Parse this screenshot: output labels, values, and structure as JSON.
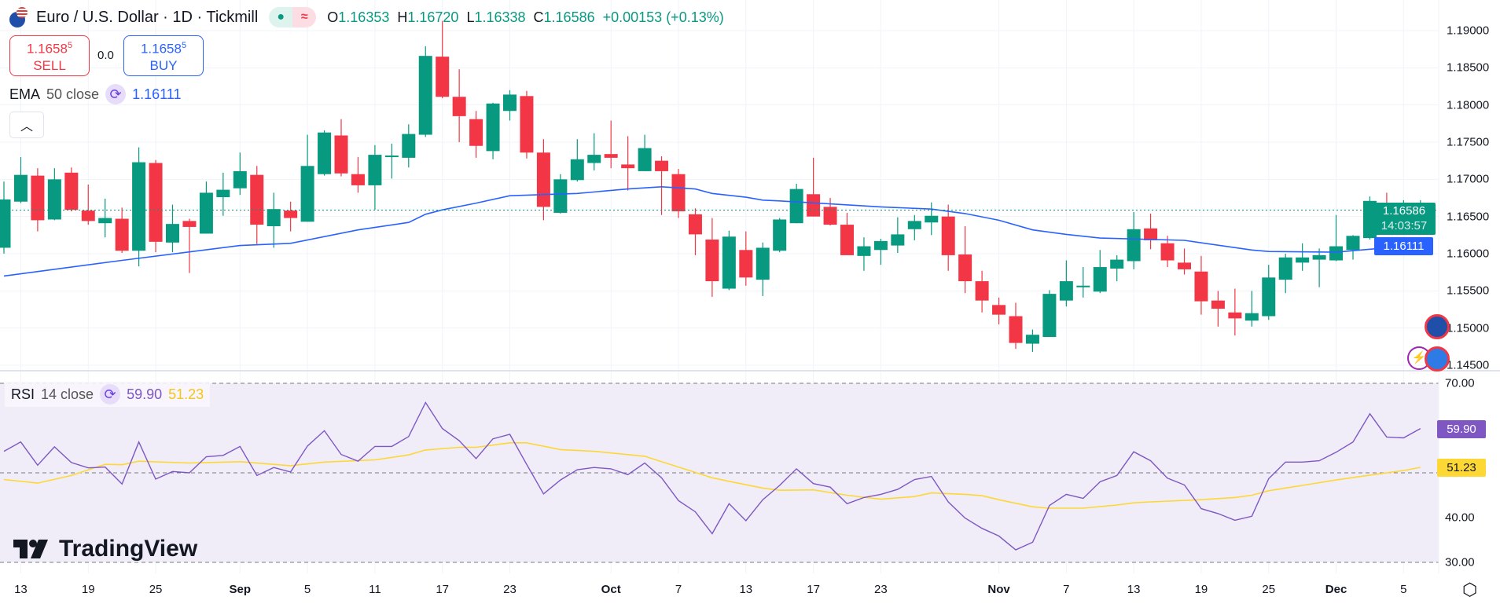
{
  "header": {
    "title": "Euro / U.S. Dollar · 1D · Tickmill",
    "icons": [
      "eu-us-flag-icon",
      "market-open-dot-icon",
      "approx-icon"
    ],
    "ohlc": {
      "o_label": "O",
      "o": "1.16353",
      "h_label": "H",
      "h": "1.16720",
      "l_label": "L",
      "l": "1.16338",
      "c_label": "C",
      "c": "1.16586",
      "change": "+0.00153 (+0.13%)"
    }
  },
  "trade": {
    "sell": {
      "price_main": "1.1658",
      "price_sup": "5",
      "label": "SELL"
    },
    "spread": "0.0",
    "buy": {
      "price_main": "1.1658",
      "price_sup": "5",
      "label": "BUY"
    }
  },
  "ema_legend": {
    "name": "EMA",
    "params": "50 close",
    "value": "1.16111"
  },
  "collapse_icon": "chevron-up-icon",
  "rsi_legend": {
    "name": "RSI",
    "params": "14 close",
    "value": "59.90",
    "ma_value": "51.23"
  },
  "logo": "TradingView",
  "colors": {
    "up": "#089981",
    "down": "#f23645",
    "ema": "#2962ff",
    "rsi": "#7e57c2",
    "rsi_ma": "#fdd835",
    "rsi_band": "#f0ecf8"
  },
  "price_axis": {
    "ticks": [
      "1.19000",
      "1.18500",
      "1.18000",
      "1.17500",
      "1.17000",
      "1.16500",
      "1.16000",
      "1.15500",
      "1.15000",
      "1.14500"
    ],
    "last_price": "1.16586",
    "countdown": "14:03:57",
    "ema_tag": "1.16111"
  },
  "rsi_axis": {
    "ticks": [
      "70.00",
      "40.00",
      "30.00"
    ],
    "rsi_tag": "59.90",
    "ma_tag": "51.23"
  },
  "time_axis": [
    {
      "label": "13",
      "date": "Aug 13"
    },
    {
      "label": "19",
      "date": "Aug 19"
    },
    {
      "label": "25",
      "date": "Aug 25"
    },
    {
      "label": "Sep",
      "date": "Sep 1"
    },
    {
      "label": "5",
      "date": "Sep 5"
    },
    {
      "label": "11",
      "date": "Sep 11"
    },
    {
      "label": "17",
      "date": "Sep 17"
    },
    {
      "label": "23",
      "date": "Sep 23"
    },
    {
      "label": "Oct",
      "date": "Oct 1"
    },
    {
      "label": "7",
      "date": "Oct 7"
    },
    {
      "label": "13",
      "date": "Oct 13"
    },
    {
      "label": "17",
      "date": "Oct 17"
    },
    {
      "label": "23",
      "date": "Oct 23"
    },
    {
      "label": "Nov",
      "date": "Nov 3"
    },
    {
      "label": "7",
      "date": "Nov 7"
    },
    {
      "label": "13",
      "date": "Nov 13"
    },
    {
      "label": "19",
      "date": "Nov 19"
    },
    {
      "label": "25",
      "date": "Nov 25"
    },
    {
      "label": "Dec",
      "date": "Dec 1"
    },
    {
      "label": "5",
      "date": "Dec 5"
    }
  ],
  "chart_data": {
    "type": "candlestick",
    "ylim": [
      1.1445,
      1.1925
    ],
    "columns": [
      "date",
      "open",
      "high",
      "low",
      "close"
    ],
    "candles": [
      [
        "Aug 12",
        1.1608,
        1.1697,
        1.16,
        1.1673
      ],
      [
        "Aug 13",
        1.167,
        1.173,
        1.1668,
        1.1706
      ],
      [
        "Aug 14",
        1.1705,
        1.1715,
        1.163,
        1.1645
      ],
      [
        "Aug 15",
        1.1646,
        1.1715,
        1.1645,
        1.17
      ],
      [
        "Aug 18",
        1.1709,
        1.1716,
        1.1657,
        1.1659
      ],
      [
        "Aug 19",
        1.1658,
        1.1693,
        1.1639,
        1.1644
      ],
      [
        "Aug 20",
        1.1641,
        1.1674,
        1.1622,
        1.1648
      ],
      [
        "Aug 21",
        1.1647,
        1.1662,
        1.1601,
        1.1604
      ],
      [
        "Aug 22",
        1.1604,
        1.1743,
        1.1583,
        1.1723
      ],
      [
        "Aug 25",
        1.1722,
        1.1726,
        1.1602,
        1.1616
      ],
      [
        "Aug 26",
        1.1615,
        1.1666,
        1.1602,
        1.164
      ],
      [
        "Aug 27",
        1.1644,
        1.1647,
        1.1574,
        1.1636
      ],
      [
        "Aug 28",
        1.1627,
        1.1697,
        1.1627,
        1.1682
      ],
      [
        "Aug 29",
        1.1676,
        1.1709,
        1.1651,
        1.1686
      ],
      [
        "Sep 1",
        1.1688,
        1.1736,
        1.1679,
        1.1711
      ],
      [
        "Sep 2",
        1.1706,
        1.1718,
        1.1613,
        1.1639
      ],
      [
        "Sep 3",
        1.1637,
        1.1682,
        1.1608,
        1.166
      ],
      [
        "Sep 4",
        1.1658,
        1.167,
        1.163,
        1.1648
      ],
      [
        "Sep 5",
        1.1643,
        1.176,
        1.1643,
        1.1718
      ],
      [
        "Sep 8",
        1.1707,
        1.1766,
        1.1705,
        1.1763
      ],
      [
        "Sep 9",
        1.1759,
        1.1781,
        1.1704,
        1.1708
      ],
      [
        "Sep 10",
        1.1707,
        1.173,
        1.1682,
        1.1692
      ],
      [
        "Sep 11",
        1.1692,
        1.1746,
        1.1659,
        1.1733
      ],
      [
        "Sep 12",
        1.1731,
        1.1748,
        1.1701,
        1.1732
      ],
      [
        "Sep 15",
        1.1729,
        1.1774,
        1.1716,
        1.1761
      ],
      [
        "Sep 16",
        1.176,
        1.1879,
        1.1757,
        1.1866
      ],
      [
        "Sep 17",
        1.1865,
        1.1913,
        1.1809,
        1.1811
      ],
      [
        "Sep 18",
        1.1811,
        1.1848,
        1.175,
        1.1785
      ],
      [
        "Sep 19",
        1.1781,
        1.1792,
        1.1729,
        1.1745
      ],
      [
        "Sep 22",
        1.1738,
        1.1803,
        1.1727,
        1.1802
      ],
      [
        "Sep 23",
        1.1792,
        1.182,
        1.1779,
        1.1814
      ],
      [
        "Sep 24",
        1.1812,
        1.1819,
        1.1728,
        1.1736
      ],
      [
        "Sep 25",
        1.1736,
        1.1754,
        1.1645,
        1.1663
      ],
      [
        "Sep 26",
        1.1655,
        1.1707,
        1.1654,
        1.17
      ],
      [
        "Sep 29",
        1.1699,
        1.1754,
        1.1697,
        1.1727
      ],
      [
        "Sep 30",
        1.1722,
        1.1762,
        1.1712,
        1.1733
      ],
      [
        "Oct 1",
        1.1734,
        1.1779,
        1.1715,
        1.1729
      ],
      [
        "Oct 2",
        1.172,
        1.1758,
        1.1685,
        1.1715
      ],
      [
        "Oct 3",
        1.1711,
        1.176,
        1.1711,
        1.1742
      ],
      [
        "Oct 6",
        1.1725,
        1.1731,
        1.1652,
        1.1711
      ],
      [
        "Oct 7",
        1.1707,
        1.1714,
        1.1648,
        1.1657
      ],
      [
        "Oct 8",
        1.1653,
        1.1661,
        1.1598,
        1.1626
      ],
      [
        "Oct 9",
        1.1619,
        1.1648,
        1.1542,
        1.1563
      ],
      [
        "Oct 10",
        1.1553,
        1.1631,
        1.1551,
        1.1623
      ],
      [
        "Oct 13",
        1.1605,
        1.163,
        1.1557,
        1.1568
      ],
      [
        "Oct 14",
        1.1565,
        1.1615,
        1.1543,
        1.1608
      ],
      [
        "Oct 15",
        1.1604,
        1.1648,
        1.1602,
        1.1646
      ],
      [
        "Oct 16",
        1.1641,
        1.1694,
        1.1641,
        1.1687
      ],
      [
        "Oct 17",
        1.168,
        1.1729,
        1.165,
        1.165
      ],
      [
        "Oct 20",
        1.1663,
        1.1675,
        1.1638,
        1.1639
      ],
      [
        "Oct 21",
        1.1639,
        1.1655,
        1.1598,
        1.1598
      ],
      [
        "Oct 22",
        1.1597,
        1.1622,
        1.1577,
        1.161
      ],
      [
        "Oct 23",
        1.1605,
        1.162,
        1.1585,
        1.1617
      ],
      [
        "Oct 24",
        1.1611,
        1.1649,
        1.1601,
        1.1626
      ],
      [
        "Oct 27",
        1.1633,
        1.1652,
        1.1618,
        1.1644
      ],
      [
        "Oct 28",
        1.1642,
        1.1669,
        1.1625,
        1.1651
      ],
      [
        "Oct 29",
        1.165,
        1.1666,
        1.1577,
        1.1598
      ],
      [
        "Oct 30",
        1.1599,
        1.1637,
        1.1547,
        1.1563
      ],
      [
        "Oct 31",
        1.1563,
        1.1577,
        1.1521,
        1.1537
      ],
      [
        "Nov 3",
        1.1531,
        1.1541,
        1.1505,
        1.1518
      ],
      [
        "Nov 4",
        1.1516,
        1.1534,
        1.1472,
        1.148
      ],
      [
        "Nov 5",
        1.1479,
        1.1498,
        1.1468,
        1.1491
      ],
      [
        "Nov 6",
        1.1488,
        1.1551,
        1.1488,
        1.1546
      ],
      [
        "Nov 7",
        1.1537,
        1.1591,
        1.1529,
        1.1563
      ],
      [
        "Nov 10",
        1.1556,
        1.1582,
        1.1541,
        1.1557
      ],
      [
        "Nov 11",
        1.1549,
        1.1605,
        1.1547,
        1.1582
      ],
      [
        "Nov 12",
        1.158,
        1.1598,
        1.1563,
        1.1592
      ],
      [
        "Nov 13",
        1.159,
        1.1656,
        1.1579,
        1.1633
      ],
      [
        "Nov 14",
        1.1634,
        1.1654,
        1.1606,
        1.1618
      ],
      [
        "Nov 17",
        1.1614,
        1.1624,
        1.1582,
        1.1591
      ],
      [
        "Nov 18",
        1.1588,
        1.1607,
        1.1572,
        1.1579
      ],
      [
        "Nov 19",
        1.1576,
        1.1597,
        1.1518,
        1.1536
      ],
      [
        "Nov 20",
        1.1537,
        1.155,
        1.1502,
        1.1526
      ],
      [
        "Nov 21",
        1.1521,
        1.1553,
        1.149,
        1.1513
      ],
      [
        "Nov 24",
        1.151,
        1.155,
        1.1502,
        1.152
      ],
      [
        "Nov 25",
        1.1516,
        1.1585,
        1.1511,
        1.1568
      ],
      [
        "Nov 26",
        1.1565,
        1.16,
        1.1547,
        1.1595
      ],
      [
        "Nov 27",
        1.1588,
        1.1614,
        1.1577,
        1.1595
      ],
      [
        "Nov 28",
        1.1592,
        1.1607,
        1.1555,
        1.1598
      ],
      [
        "Dec 1",
        1.1591,
        1.1652,
        1.159,
        1.161
      ],
      [
        "Dec 2",
        1.1605,
        1.1625,
        1.1592,
        1.1624
      ],
      [
        "Dec 3",
        1.1621,
        1.1677,
        1.1619,
        1.1671
      ],
      [
        "Dec 4",
        1.1662,
        1.1682,
        1.1641,
        1.1643
      ],
      [
        "Dec 5",
        1.1641,
        1.1672,
        1.1627,
        1.1643
      ],
      [
        "Dec 8",
        1.16353,
        1.1672,
        1.16338,
        1.16586
      ]
    ],
    "ema50": [
      [
        "Aug 12",
        1.157
      ],
      [
        "Aug 21",
        1.1591
      ],
      [
        "Sep 1",
        1.1611
      ],
      [
        "Sep 4",
        1.1614
      ],
      [
        "Sep 10",
        1.1632
      ],
      [
        "Sep 15",
        1.1642
      ],
      [
        "Sep 16",
        1.1653
      ],
      [
        "Sep 17",
        1.1659
      ],
      [
        "Sep 19",
        1.1668
      ],
      [
        "Sep 23",
        1.1678
      ],
      [
        "Sep 29",
        1.1681
      ],
      [
        "Oct 2",
        1.1687
      ],
      [
        "Oct 6",
        1.169
      ],
      [
        "Oct 8",
        1.1687
      ],
      [
        "Oct 9",
        1.1681
      ],
      [
        "Oct 13",
        1.1676
      ],
      [
        "Oct 14",
        1.1672
      ],
      [
        "Oct 15",
        1.1671
      ],
      [
        "Oct 20",
        1.1667
      ],
      [
        "Oct 23",
        1.1663
      ],
      [
        "Oct 28",
        1.166
      ],
      [
        "Oct 30",
        1.1654
      ],
      [
        "Nov 3",
        1.1645
      ],
      [
        "Nov 5",
        1.1632
      ],
      [
        "Nov 7",
        1.1626
      ],
      [
        "Nov 11",
        1.1621
      ],
      [
        "Nov 18",
        1.1618
      ],
      [
        "Nov 24",
        1.1605
      ],
      [
        "Nov 25",
        1.1603
      ],
      [
        "Dec 1",
        1.1602
      ],
      [
        "Dec 3",
        1.1606
      ],
      [
        "Dec 8",
        1.16111
      ]
    ],
    "rsi": {
      "ylim": [
        30,
        70
      ],
      "levels": [
        70,
        50,
        30
      ],
      "values": [
        54.8,
        56.9,
        51.7,
        55.8,
        52.3,
        51.1,
        51.3,
        47.5,
        56.9,
        48.6,
        50.3,
        50.0,
        53.6,
        53.9,
        55.9,
        49.4,
        51.2,
        50.2,
        56.0,
        59.4,
        54.1,
        52.6,
        55.9,
        55.9,
        58.1,
        65.7,
        59.9,
        57.2,
        53.2,
        57.6,
        58.6,
        51.9,
        45.3,
        48.4,
        50.7,
        51.2,
        50.9,
        49.6,
        52.2,
        48.9,
        43.8,
        41.3,
        36.4,
        43.1,
        39.3,
        44.0,
        47.2,
        50.9,
        47.6,
        46.8,
        43.1,
        44.5,
        45.2,
        46.3,
        48.5,
        49.2,
        43.5,
        39.9,
        37.6,
        35.9,
        32.8,
        34.5,
        42.7,
        45.2,
        44.3,
        48.0,
        49.4,
        54.7,
        52.7,
        48.8,
        47.3,
        42.0,
        40.9,
        39.4,
        40.3,
        48.7,
        52.4,
        52.4,
        52.7,
        54.6,
        56.9,
        63.2,
        58.0,
        57.8,
        59.9
      ],
      "ma": [
        [
          "Aug 12",
          48.5
        ],
        [
          "Aug 14",
          47.7
        ],
        [
          "Aug 18",
          49.4
        ],
        [
          "Aug 20",
          51.9
        ],
        [
          "Aug 21",
          51.8
        ],
        [
          "Aug 22",
          52.6
        ],
        [
          "Aug 27",
          52.2
        ],
        [
          "Sep 1",
          52.5
        ],
        [
          "Sep 4",
          51.6
        ],
        [
          "Sep 8",
          52.4
        ],
        [
          "Sep 11",
          52.9
        ],
        [
          "Sep 15",
          54.0
        ],
        [
          "Sep 16",
          55.1
        ],
        [
          "Sep 18",
          55.7
        ],
        [
          "Sep 19",
          55.7
        ],
        [
          "Sep 23",
          56.7
        ],
        [
          "Sep 24",
          56.7
        ],
        [
          "Sep 26",
          55.2
        ],
        [
          "Sep 30",
          54.8
        ],
        [
          "Oct 3",
          53.7
        ],
        [
          "Oct 7",
          51.3
        ],
        [
          "Oct 9",
          48.9
        ],
        [
          "Oct 10",
          48.1
        ],
        [
          "Oct 14",
          46.6
        ],
        [
          "Oct 15",
          46.1
        ],
        [
          "Oct 17",
          46.2
        ],
        [
          "Oct 21",
          45.0
        ],
        [
          "Oct 23",
          44.1
        ],
        [
          "Oct 27",
          44.7
        ],
        [
          "Oct 28",
          45.5
        ],
        [
          "Oct 30",
          45.2
        ],
        [
          "Oct 31",
          44.9
        ],
        [
          "Nov 3",
          44.0
        ],
        [
          "Nov 5",
          42.4
        ],
        [
          "Nov 6",
          42.1
        ],
        [
          "Nov 10",
          42.1
        ],
        [
          "Nov 12",
          42.8
        ],
        [
          "Nov 13",
          43.3
        ],
        [
          "Nov 14",
          43.5
        ],
        [
          "Nov 19",
          44.0
        ],
        [
          "Nov 21",
          44.5
        ],
        [
          "Nov 24",
          45.0
        ],
        [
          "Nov 25",
          46.0
        ],
        [
          "Nov 27",
          47.2
        ],
        [
          "Dec 1",
          48.4
        ],
        [
          "Dec 3",
          49.5
        ],
        [
          "Dec 5",
          50.5
        ],
        [
          "Dec 8",
          51.23
        ]
      ]
    }
  }
}
